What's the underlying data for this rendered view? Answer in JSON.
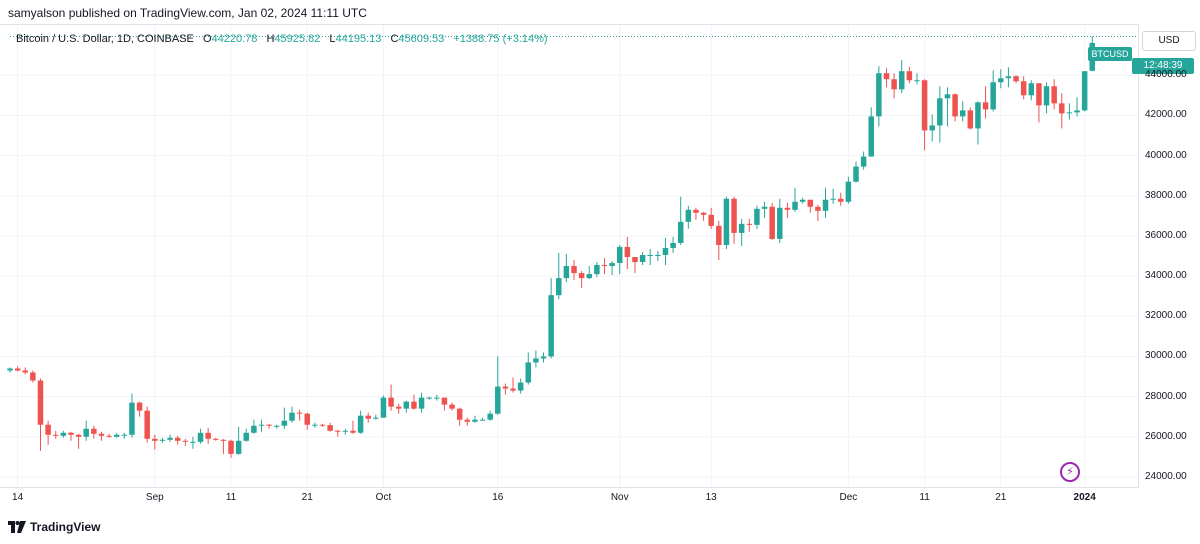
{
  "header": {
    "published": "samyalson published on TradingView.com, Jan 02, 2024 11:11 UTC"
  },
  "legend": {
    "symbol": "Bitcoin / U.S. Dollar, 1D, COINBASE",
    "o_label": "O",
    "o_value": "44220.78",
    "h_label": "H",
    "h_value": "45925.82",
    "l_label": "L",
    "l_value": "44195.13",
    "c_label": "C",
    "c_value": "45609.53",
    "change": "+1388.75 (+3.14%)"
  },
  "currency": "USD",
  "price_tag": {
    "ticker": "BTCUSD",
    "countdown": "12:48:39"
  },
  "footer": {
    "logo_icon": "tradingview-logo-icon",
    "brand": "TradingView"
  },
  "colors": {
    "up": "#26a69a",
    "down": "#ef5350",
    "grid": "#f0f3fa",
    "accent": "#9c27b0"
  },
  "chart_data": {
    "type": "candlestick",
    "title": "Bitcoin / U.S. Dollar, 1D, COINBASE",
    "y_ticks": [
      "44000.00",
      "42000.00",
      "40000.00",
      "38000.00",
      "36000.00",
      "34000.00",
      "32000.00",
      "30000.00",
      "28000.00",
      "26000.00",
      "24000.00"
    ],
    "y_tick_values": [
      44000,
      42000,
      40000,
      38000,
      36000,
      34000,
      32000,
      30000,
      28000,
      26000,
      24000
    ],
    "x_ticks": [
      "14",
      "Sep",
      "11",
      "21",
      "Oct",
      "16",
      "Nov",
      "13",
      "Dec",
      "11",
      "21",
      "2024"
    ],
    "x_tick_dates": [
      "2023-08-14",
      "2023-09-01",
      "2023-09-11",
      "2023-09-21",
      "2023-10-01",
      "2023-10-16",
      "2023-11-01",
      "2023-11-13",
      "2023-12-01",
      "2023-12-11",
      "2023-12-21",
      "2024-01-01"
    ],
    "ylim": [
      23500,
      46500
    ],
    "xlim": [
      "2023-08-13",
      "2024-01-08"
    ],
    "grid": true,
    "candles": [
      {
        "d": "2023-08-13",
        "o": 29300,
        "h": 29450,
        "l": 29200,
        "c": 29400
      },
      {
        "d": "2023-08-14",
        "o": 29400,
        "h": 29500,
        "l": 29250,
        "c": 29300
      },
      {
        "d": "2023-08-15",
        "o": 29300,
        "h": 29450,
        "l": 29100,
        "c": 29200
      },
      {
        "d": "2023-08-16",
        "o": 29200,
        "h": 29300,
        "l": 28700,
        "c": 28800
      },
      {
        "d": "2023-08-17",
        "o": 28800,
        "h": 28900,
        "l": 25300,
        "c": 26600
      },
      {
        "d": "2023-08-18",
        "o": 26600,
        "h": 26800,
        "l": 25600,
        "c": 26100
      },
      {
        "d": "2023-08-19",
        "o": 26100,
        "h": 26300,
        "l": 25900,
        "c": 26050
      },
      {
        "d": "2023-08-20",
        "o": 26050,
        "h": 26300,
        "l": 25950,
        "c": 26200
      },
      {
        "d": "2023-08-21",
        "o": 26200,
        "h": 26250,
        "l": 25800,
        "c": 26100
      },
      {
        "d": "2023-08-22",
        "o": 26100,
        "h": 26150,
        "l": 25400,
        "c": 26000
      },
      {
        "d": "2023-08-23",
        "o": 26000,
        "h": 26800,
        "l": 25800,
        "c": 26400
      },
      {
        "d": "2023-08-24",
        "o": 26400,
        "h": 26550,
        "l": 25900,
        "c": 26150
      },
      {
        "d": "2023-08-25",
        "o": 26150,
        "h": 26250,
        "l": 25800,
        "c": 26050
      },
      {
        "d": "2023-08-26",
        "o": 26050,
        "h": 26150,
        "l": 25950,
        "c": 26000
      },
      {
        "d": "2023-08-27",
        "o": 26000,
        "h": 26200,
        "l": 25950,
        "c": 26100
      },
      {
        "d": "2023-08-28",
        "o": 26100,
        "h": 26200,
        "l": 25900,
        "c": 26100
      },
      {
        "d": "2023-08-29",
        "o": 26100,
        "h": 28150,
        "l": 25950,
        "c": 27700
      },
      {
        "d": "2023-08-30",
        "o": 27700,
        "h": 27750,
        "l": 27000,
        "c": 27300
      },
      {
        "d": "2023-08-31",
        "o": 27300,
        "h": 27500,
        "l": 25700,
        "c": 25900
      },
      {
        "d": "2023-09-01",
        "o": 25900,
        "h": 26100,
        "l": 25350,
        "c": 25800
      },
      {
        "d": "2023-09-02",
        "o": 25800,
        "h": 25950,
        "l": 25700,
        "c": 25850
      },
      {
        "d": "2023-09-03",
        "o": 25850,
        "h": 26100,
        "l": 25750,
        "c": 25950
      },
      {
        "d": "2023-09-04",
        "o": 25950,
        "h": 26050,
        "l": 25600,
        "c": 25800
      },
      {
        "d": "2023-09-05",
        "o": 25800,
        "h": 25900,
        "l": 25550,
        "c": 25750
      },
      {
        "d": "2023-09-06",
        "o": 25750,
        "h": 26000,
        "l": 25400,
        "c": 25750
      },
      {
        "d": "2023-09-07",
        "o": 25750,
        "h": 26400,
        "l": 25650,
        "c": 26200
      },
      {
        "d": "2023-09-08",
        "o": 26200,
        "h": 26450,
        "l": 25650,
        "c": 25900
      },
      {
        "d": "2023-09-09",
        "o": 25900,
        "h": 25950,
        "l": 25800,
        "c": 25850
      },
      {
        "d": "2023-09-10",
        "o": 25850,
        "h": 25900,
        "l": 25150,
        "c": 25800
      },
      {
        "d": "2023-09-11",
        "o": 25800,
        "h": 25850,
        "l": 24950,
        "c": 25150
      },
      {
        "d": "2023-09-12",
        "o": 25150,
        "h": 26500,
        "l": 25100,
        "c": 25800
      },
      {
        "d": "2023-09-13",
        "o": 25800,
        "h": 26400,
        "l": 25750,
        "c": 26200
      },
      {
        "d": "2023-09-14",
        "o": 26200,
        "h": 26850,
        "l": 26150,
        "c": 26550
      },
      {
        "d": "2023-09-15",
        "o": 26550,
        "h": 26850,
        "l": 26250,
        "c": 26600
      },
      {
        "d": "2023-09-16",
        "o": 26600,
        "h": 26650,
        "l": 26400,
        "c": 26550
      },
      {
        "d": "2023-09-17",
        "o": 26550,
        "h": 26600,
        "l": 26400,
        "c": 26550
      },
      {
        "d": "2023-09-18",
        "o": 26550,
        "h": 27450,
        "l": 26400,
        "c": 26800
      },
      {
        "d": "2023-09-19",
        "o": 26800,
        "h": 27500,
        "l": 26700,
        "c": 27200
      },
      {
        "d": "2023-09-20",
        "o": 27200,
        "h": 27350,
        "l": 26800,
        "c": 27150
      },
      {
        "d": "2023-09-21",
        "o": 27150,
        "h": 27200,
        "l": 26350,
        "c": 26600
      },
      {
        "d": "2023-09-22",
        "o": 26600,
        "h": 26700,
        "l": 26450,
        "c": 26600
      },
      {
        "d": "2023-09-23",
        "o": 26600,
        "h": 26650,
        "l": 26500,
        "c": 26580
      },
      {
        "d": "2023-09-24",
        "o": 26580,
        "h": 26700,
        "l": 26250,
        "c": 26300
      },
      {
        "d": "2023-09-25",
        "o": 26300,
        "h": 26350,
        "l": 26000,
        "c": 26250
      },
      {
        "d": "2023-09-26",
        "o": 26250,
        "h": 26400,
        "l": 26100,
        "c": 26300
      },
      {
        "d": "2023-09-27",
        "o": 26300,
        "h": 26800,
        "l": 26150,
        "c": 26200
      },
      {
        "d": "2023-09-28",
        "o": 26200,
        "h": 27300,
        "l": 26150,
        "c": 27050
      },
      {
        "d": "2023-09-29",
        "o": 27050,
        "h": 27200,
        "l": 26700,
        "c": 26900
      },
      {
        "d": "2023-09-30",
        "o": 26900,
        "h": 27100,
        "l": 26850,
        "c": 26950
      },
      {
        "d": "2023-10-01",
        "o": 26950,
        "h": 28050,
        "l": 26950,
        "c": 27950
      },
      {
        "d": "2023-10-02",
        "o": 27950,
        "h": 28600,
        "l": 27300,
        "c": 27500
      },
      {
        "d": "2023-10-03",
        "o": 27500,
        "h": 27650,
        "l": 27150,
        "c": 27400
      },
      {
        "d": "2023-10-04",
        "o": 27400,
        "h": 27800,
        "l": 27200,
        "c": 27750
      },
      {
        "d": "2023-10-05",
        "o": 27750,
        "h": 28100,
        "l": 27350,
        "c": 27400
      },
      {
        "d": "2023-10-06",
        "o": 27400,
        "h": 28200,
        "l": 27200,
        "c": 27950
      },
      {
        "d": "2023-10-07",
        "o": 27950,
        "h": 28000,
        "l": 27850,
        "c": 27950
      },
      {
        "d": "2023-10-08",
        "o": 27950,
        "h": 28100,
        "l": 27800,
        "c": 27950
      },
      {
        "d": "2023-10-09",
        "o": 27950,
        "h": 27950,
        "l": 27300,
        "c": 27600
      },
      {
        "d": "2023-10-10",
        "o": 27600,
        "h": 27700,
        "l": 27300,
        "c": 27400
      },
      {
        "d": "2023-10-11",
        "o": 27400,
        "h": 27450,
        "l": 26550,
        "c": 26850
      },
      {
        "d": "2023-10-12",
        "o": 26850,
        "h": 26950,
        "l": 26550,
        "c": 26750
      },
      {
        "d": "2023-10-13",
        "o": 26750,
        "h": 27050,
        "l": 26700,
        "c": 26850
      },
      {
        "d": "2023-10-14",
        "o": 26850,
        "h": 26950,
        "l": 26800,
        "c": 26850
      },
      {
        "d": "2023-10-15",
        "o": 26850,
        "h": 27300,
        "l": 26800,
        "c": 27150
      },
      {
        "d": "2023-10-16",
        "o": 27150,
        "h": 30000,
        "l": 27100,
        "c": 28500
      },
      {
        "d": "2023-10-17",
        "o": 28500,
        "h": 28650,
        "l": 28100,
        "c": 28400
      },
      {
        "d": "2023-10-18",
        "o": 28400,
        "h": 28950,
        "l": 28200,
        "c": 28300
      },
      {
        "d": "2023-10-19",
        "o": 28300,
        "h": 28900,
        "l": 28150,
        "c": 28700
      },
      {
        "d": "2023-10-20",
        "o": 28700,
        "h": 30200,
        "l": 28600,
        "c": 29700
      },
      {
        "d": "2023-10-21",
        "o": 29700,
        "h": 30300,
        "l": 29450,
        "c": 29900
      },
      {
        "d": "2023-10-22",
        "o": 29900,
        "h": 30200,
        "l": 29700,
        "c": 30000
      },
      {
        "d": "2023-10-23",
        "o": 30000,
        "h": 33900,
        "l": 29900,
        "c": 33050
      },
      {
        "d": "2023-10-24",
        "o": 33050,
        "h": 35150,
        "l": 32850,
        "c": 33900
      },
      {
        "d": "2023-10-25",
        "o": 33900,
        "h": 35100,
        "l": 33700,
        "c": 34500
      },
      {
        "d": "2023-10-26",
        "o": 34500,
        "h": 34800,
        "l": 33800,
        "c": 34150
      },
      {
        "d": "2023-10-27",
        "o": 34150,
        "h": 34250,
        "l": 33400,
        "c": 33900
      },
      {
        "d": "2023-10-28",
        "o": 33900,
        "h": 34500,
        "l": 33850,
        "c": 34100
      },
      {
        "d": "2023-10-29",
        "o": 34100,
        "h": 34700,
        "l": 33950,
        "c": 34550
      },
      {
        "d": "2023-10-30",
        "o": 34550,
        "h": 34900,
        "l": 34100,
        "c": 34500
      },
      {
        "d": "2023-10-31",
        "o": 34500,
        "h": 34750,
        "l": 34050,
        "c": 34650
      },
      {
        "d": "2023-11-01",
        "o": 34650,
        "h": 35550,
        "l": 34100,
        "c": 35450
      },
      {
        "d": "2023-11-02",
        "o": 35450,
        "h": 35950,
        "l": 34350,
        "c": 34950
      },
      {
        "d": "2023-11-03",
        "o": 34950,
        "h": 34950,
        "l": 34150,
        "c": 34700
      },
      {
        "d": "2023-11-04",
        "o": 34700,
        "h": 35200,
        "l": 34550,
        "c": 35050
      },
      {
        "d": "2023-11-05",
        "o": 35050,
        "h": 35350,
        "l": 34550,
        "c": 35050
      },
      {
        "d": "2023-11-06",
        "o": 35050,
        "h": 35250,
        "l": 34750,
        "c": 35050
      },
      {
        "d": "2023-11-07",
        "o": 35050,
        "h": 35900,
        "l": 34550,
        "c": 35400
      },
      {
        "d": "2023-11-08",
        "o": 35400,
        "h": 35950,
        "l": 35150,
        "c": 35650
      },
      {
        "d": "2023-11-09",
        "o": 35650,
        "h": 37950,
        "l": 35550,
        "c": 36700
      },
      {
        "d": "2023-11-10",
        "o": 36700,
        "h": 37500,
        "l": 36350,
        "c": 37300
      },
      {
        "d": "2023-11-11",
        "o": 37300,
        "h": 37400,
        "l": 36800,
        "c": 37150
      },
      {
        "d": "2023-11-12",
        "o": 37150,
        "h": 37200,
        "l": 36750,
        "c": 37050
      },
      {
        "d": "2023-11-13",
        "o": 37050,
        "h": 37400,
        "l": 36350,
        "c": 36500
      },
      {
        "d": "2023-11-14",
        "o": 36500,
        "h": 36750,
        "l": 34800,
        "c": 35550
      },
      {
        "d": "2023-11-15",
        "o": 35550,
        "h": 37950,
        "l": 35350,
        "c": 37850
      },
      {
        "d": "2023-11-16",
        "o": 37850,
        "h": 37950,
        "l": 35600,
        "c": 36150
      },
      {
        "d": "2023-11-17",
        "o": 36150,
        "h": 36850,
        "l": 35500,
        "c": 36600
      },
      {
        "d": "2023-11-18",
        "o": 36600,
        "h": 36850,
        "l": 36200,
        "c": 36550
      },
      {
        "d": "2023-11-19",
        "o": 36550,
        "h": 37500,
        "l": 36350,
        "c": 37350
      },
      {
        "d": "2023-11-20",
        "o": 37350,
        "h": 37700,
        "l": 36900,
        "c": 37450
      },
      {
        "d": "2023-11-21",
        "o": 37450,
        "h": 37650,
        "l": 35800,
        "c": 35850
      },
      {
        "d": "2023-11-22",
        "o": 35850,
        "h": 37850,
        "l": 35650,
        "c": 37400
      },
      {
        "d": "2023-11-23",
        "o": 37400,
        "h": 37650,
        "l": 36900,
        "c": 37300
      },
      {
        "d": "2023-11-24",
        "o": 37300,
        "h": 38400,
        "l": 37200,
        "c": 37700
      },
      {
        "d": "2023-11-25",
        "o": 37700,
        "h": 37900,
        "l": 37600,
        "c": 37800
      },
      {
        "d": "2023-11-26",
        "o": 37800,
        "h": 37800,
        "l": 37150,
        "c": 37450
      },
      {
        "d": "2023-11-27",
        "o": 37450,
        "h": 37550,
        "l": 36750,
        "c": 37250
      },
      {
        "d": "2023-11-28",
        "o": 37250,
        "h": 38400,
        "l": 36900,
        "c": 37800
      },
      {
        "d": "2023-11-29",
        "o": 37800,
        "h": 38350,
        "l": 37600,
        "c": 37850
      },
      {
        "d": "2023-11-30",
        "o": 37850,
        "h": 38150,
        "l": 37500,
        "c": 37700
      },
      {
        "d": "2023-12-01",
        "o": 37700,
        "h": 38950,
        "l": 37600,
        "c": 38700
      },
      {
        "d": "2023-12-02",
        "o": 38700,
        "h": 39700,
        "l": 38650,
        "c": 39450
      },
      {
        "d": "2023-12-03",
        "o": 39450,
        "h": 40200,
        "l": 39300,
        "c": 39950
      },
      {
        "d": "2023-12-04",
        "o": 39950,
        "h": 42400,
        "l": 39950,
        "c": 41950
      },
      {
        "d": "2023-12-05",
        "o": 41950,
        "h": 44450,
        "l": 41450,
        "c": 44100
      },
      {
        "d": "2023-12-06",
        "o": 44100,
        "h": 44350,
        "l": 43400,
        "c": 43800
      },
      {
        "d": "2023-12-07",
        "o": 43800,
        "h": 44100,
        "l": 42850,
        "c": 43300
      },
      {
        "d": "2023-12-08",
        "o": 43300,
        "h": 44750,
        "l": 43100,
        "c": 44200
      },
      {
        "d": "2023-12-09",
        "o": 44200,
        "h": 44400,
        "l": 43600,
        "c": 43750
      },
      {
        "d": "2023-12-10",
        "o": 43750,
        "h": 44100,
        "l": 43550,
        "c": 43750
      },
      {
        "d": "2023-12-11",
        "o": 43750,
        "h": 43800,
        "l": 40250,
        "c": 41250
      },
      {
        "d": "2023-12-12",
        "o": 41250,
        "h": 42050,
        "l": 40700,
        "c": 41500
      },
      {
        "d": "2023-12-13",
        "o": 41500,
        "h": 43450,
        "l": 40650,
        "c": 42850
      },
      {
        "d": "2023-12-14",
        "o": 42850,
        "h": 43400,
        "l": 41450,
        "c": 43050
      },
      {
        "d": "2023-12-15",
        "o": 43050,
        "h": 43100,
        "l": 41700,
        "c": 41950
      },
      {
        "d": "2023-12-16",
        "o": 41950,
        "h": 42700,
        "l": 41700,
        "c": 42250
      },
      {
        "d": "2023-12-17",
        "o": 42250,
        "h": 42400,
        "l": 41300,
        "c": 41350
      },
      {
        "d": "2023-12-18",
        "o": 41350,
        "h": 42700,
        "l": 40550,
        "c": 42650
      },
      {
        "d": "2023-12-19",
        "o": 42650,
        "h": 43450,
        "l": 41850,
        "c": 42300
      },
      {
        "d": "2023-12-20",
        "o": 42300,
        "h": 44250,
        "l": 42200,
        "c": 43650
      },
      {
        "d": "2023-12-21",
        "o": 43650,
        "h": 44300,
        "l": 43350,
        "c": 43850
      },
      {
        "d": "2023-12-22",
        "o": 43850,
        "h": 44400,
        "l": 43400,
        "c": 43950
      },
      {
        "d": "2023-12-23",
        "o": 43950,
        "h": 44000,
        "l": 43600,
        "c": 43700
      },
      {
        "d": "2023-12-24",
        "o": 43700,
        "h": 43950,
        "l": 42800,
        "c": 43000
      },
      {
        "d": "2023-12-25",
        "o": 43000,
        "h": 43750,
        "l": 42750,
        "c": 43600
      },
      {
        "d": "2023-12-26",
        "o": 43600,
        "h": 43600,
        "l": 41650,
        "c": 42500
      },
      {
        "d": "2023-12-27",
        "o": 42500,
        "h": 43650,
        "l": 42100,
        "c": 43450
      },
      {
        "d": "2023-12-28",
        "o": 43450,
        "h": 43800,
        "l": 42300,
        "c": 42600
      },
      {
        "d": "2023-12-29",
        "o": 42600,
        "h": 43100,
        "l": 41350,
        "c": 42100
      },
      {
        "d": "2023-12-30",
        "o": 42100,
        "h": 42600,
        "l": 41800,
        "c": 42150
      },
      {
        "d": "2023-12-31",
        "o": 42150,
        "h": 42900,
        "l": 41950,
        "c": 42250
      },
      {
        "d": "2024-01-01",
        "o": 42250,
        "h": 44200,
        "l": 42200,
        "c": 44200
      },
      {
        "d": "2024-01-02",
        "o": 44220.78,
        "h": 45925.82,
        "l": 44195.13,
        "c": 45609.53
      }
    ]
  }
}
